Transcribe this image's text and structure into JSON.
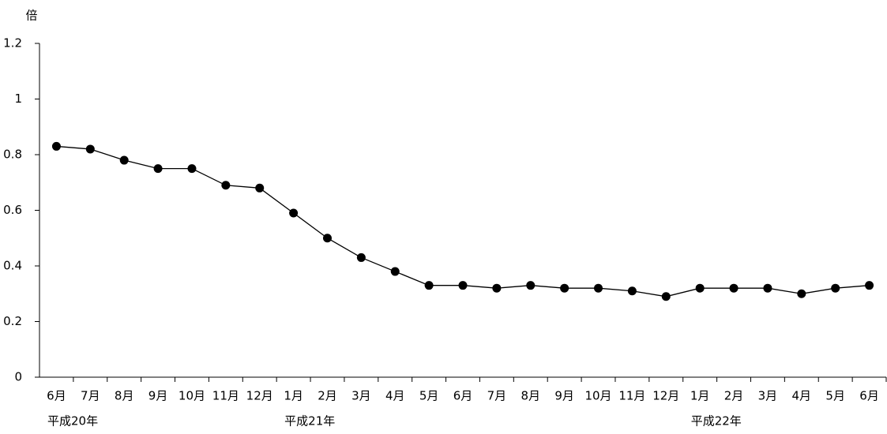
{
  "chart_data": {
    "type": "line",
    "y_axis_label": "倍",
    "categories": [
      "6月",
      "7月",
      "8月",
      "9月",
      "10月",
      "11月",
      "12月",
      "1月",
      "2月",
      "3月",
      "4月",
      "5月",
      "6月",
      "7月",
      "8月",
      "9月",
      "10月",
      "11月",
      "12月",
      "1月",
      "2月",
      "3月",
      "4月",
      "5月",
      "6月"
    ],
    "category_groups": [
      "平成20年",
      null,
      null,
      null,
      null,
      null,
      null,
      "平成21年",
      null,
      null,
      null,
      null,
      null,
      null,
      null,
      null,
      null,
      null,
      null,
      "平成22年",
      null,
      null,
      null,
      null,
      null
    ],
    "series": [
      {
        "color": "#000000",
        "values": [
          0.83,
          0.82,
          0.78,
          0.75,
          0.75,
          0.69,
          0.68,
          0.59,
          0.5,
          0.43,
          0.38,
          0.33,
          0.33,
          0.32,
          0.33,
          0.32,
          0.32,
          0.31,
          0.29,
          0.32,
          0.32,
          0.32,
          0.3,
          0.32,
          0.33
        ]
      }
    ],
    "ylim": [
      0,
      1.2
    ],
    "yticks": [
      0,
      0.2,
      0.4,
      0.6,
      0.8,
      1,
      1.2
    ],
    "grid": false
  }
}
